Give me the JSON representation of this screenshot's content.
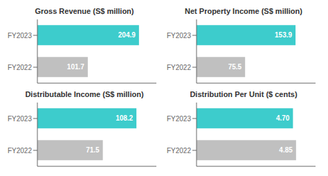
{
  "chart_data": [
    {
      "type": "bar",
      "orientation": "horizontal",
      "title": "Gross Revenue (S$ million)",
      "categories": [
        "FY2023",
        "FY2022"
      ],
      "values": [
        204.9,
        101.7
      ],
      "value_labels": [
        "204.9",
        "101.7"
      ],
      "colors": [
        "#3DCCCC",
        "#C0C0C0"
      ],
      "xlim": [
        0,
        240
      ],
      "data_labels": true,
      "tick_labels": "y",
      "grid": false
    },
    {
      "type": "bar",
      "orientation": "horizontal",
      "title": "Net Property Income (S$ million)",
      "categories": [
        "FY2023",
        "FY2022"
      ],
      "values": [
        153.9,
        75.5
      ],
      "value_labels": [
        "153.9",
        "75.5"
      ],
      "colors": [
        "#3DCCCC",
        "#C0C0C0"
      ],
      "xlim": [
        0,
        185
      ],
      "data_labels": true,
      "tick_labels": "y",
      "grid": false
    },
    {
      "type": "bar",
      "orientation": "horizontal",
      "title": "Distributable Income (S$ million)",
      "categories": [
        "FY2023",
        "FY2022"
      ],
      "values": [
        108.2,
        71.5
      ],
      "value_labels": [
        "108.2",
        "71.5"
      ],
      "colors": [
        "#3DCCCC",
        "#C0C0C0"
      ],
      "xlim": [
        0,
        130
      ],
      "data_labels": true,
      "tick_labels": "y",
      "grid": false
    },
    {
      "type": "bar",
      "orientation": "horizontal",
      "title": "Distribution Per Unit ($ cents)",
      "categories": [
        "FY2023",
        "FY2022"
      ],
      "values": [
        4.7,
        4.85
      ],
      "value_labels": [
        "4.70",
        "4.85"
      ],
      "colors": [
        "#3DCCCC",
        "#C0C0C0"
      ],
      "xlim": [
        0,
        5.8
      ],
      "data_labels": true,
      "tick_labels": "y",
      "grid": false
    }
  ]
}
